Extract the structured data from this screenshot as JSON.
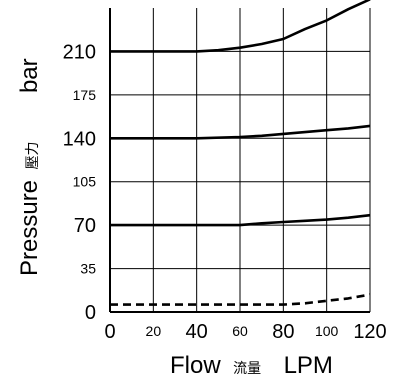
{
  "chart_data": {
    "type": "line",
    "xlim": [
      0,
      120
    ],
    "ylim": [
      0,
      245
    ],
    "grid": true,
    "x_ticks": [
      {
        "value": 0,
        "label": "0",
        "size": "large"
      },
      {
        "value": 20,
        "label": "20",
        "size": "small"
      },
      {
        "value": 40,
        "label": "40",
        "size": "large"
      },
      {
        "value": 60,
        "label": "60",
        "size": "small"
      },
      {
        "value": 80,
        "label": "80",
        "size": "large"
      },
      {
        "value": 100,
        "label": "100",
        "size": "small"
      },
      {
        "value": 120,
        "label": "120",
        "size": "large"
      }
    ],
    "y_ticks": [
      {
        "value": 0,
        "label": "0",
        "size": "large"
      },
      {
        "value": 35,
        "label": "35",
        "size": "small"
      },
      {
        "value": 70,
        "label": "70",
        "size": "large"
      },
      {
        "value": 105,
        "label": "105",
        "size": "small"
      },
      {
        "value": 140,
        "label": "140",
        "size": "large"
      },
      {
        "value": 175,
        "label": "175",
        "size": "small"
      },
      {
        "value": 210,
        "label": "210",
        "size": "large"
      }
    ],
    "xlabel": {
      "en": "Flow",
      "cjk": "流量",
      "unit": "LPM"
    },
    "ylabel": {
      "en": "Pressure",
      "cjk": "壓力",
      "unit": "bar"
    },
    "series": [
      {
        "style": "solid",
        "color": "#000000",
        "x": [
          0,
          20,
          40,
          50,
          60,
          70,
          80,
          90,
          100,
          110,
          120
        ],
        "y": [
          210,
          210,
          210,
          211,
          213,
          216,
          220,
          228,
          235,
          244,
          252
        ]
      },
      {
        "style": "solid",
        "color": "#000000",
        "x": [
          0,
          20,
          40,
          60,
          70,
          80,
          90,
          100,
          110,
          120
        ],
        "y": [
          140,
          140,
          140,
          141,
          142,
          143.5,
          145,
          146.5,
          148,
          150
        ]
      },
      {
        "style": "solid",
        "color": "#000000",
        "x": [
          0,
          20,
          40,
          60,
          70,
          80,
          90,
          100,
          110,
          120
        ],
        "y": [
          70,
          70,
          70,
          70,
          71.5,
          72.5,
          73.5,
          74.5,
          76,
          78
        ]
      },
      {
        "style": "dashed",
        "color": "#000000",
        "x": [
          0,
          20,
          40,
          60,
          80,
          90,
          100,
          110,
          120
        ],
        "y": [
          6,
          6,
          6,
          6,
          6,
          7,
          9,
          11,
          14
        ]
      }
    ]
  }
}
